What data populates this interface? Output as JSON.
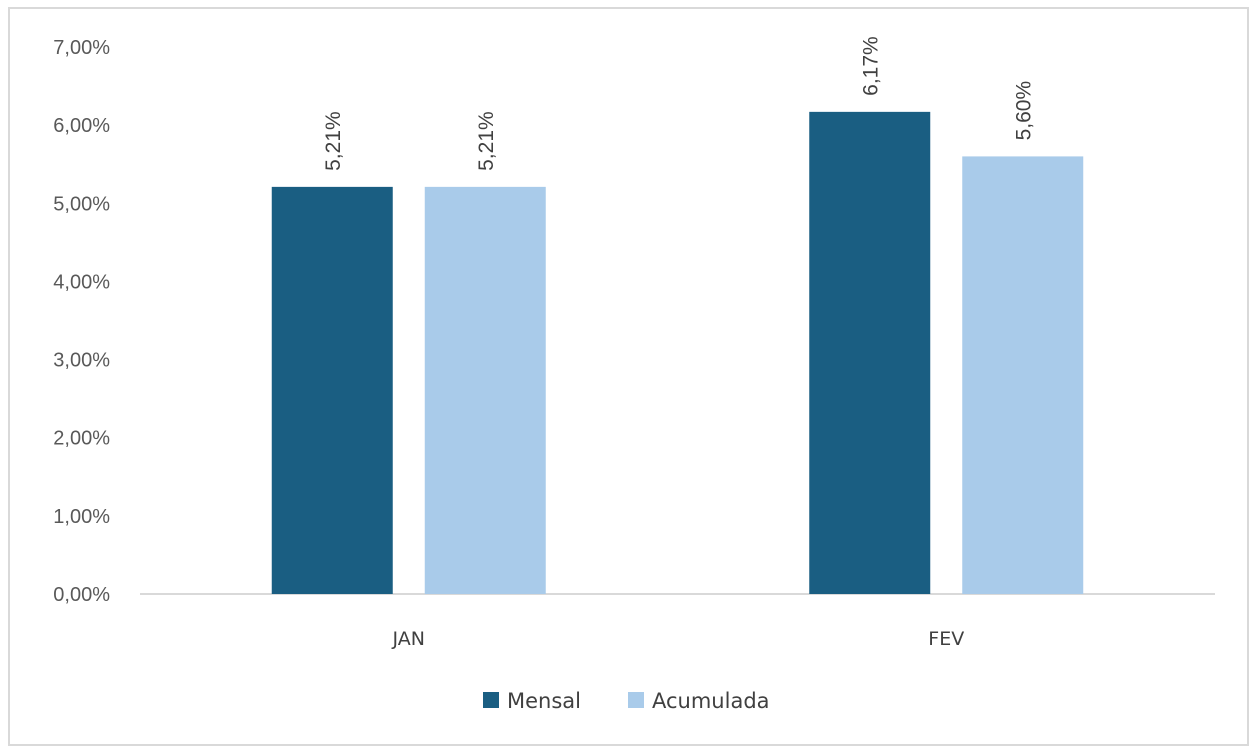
{
  "chart_data": {
    "type": "bar",
    "title": "",
    "xlabel": "",
    "ylabel": "",
    "categories": [
      "JAN",
      "FEV"
    ],
    "series": [
      {
        "name": "Mensal",
        "values": [
          5.21,
          6.17
        ],
        "color": "#1a5e82",
        "labels": [
          "5,21%",
          "6,17%"
        ]
      },
      {
        "name": "Acumulada",
        "values": [
          5.21,
          5.6
        ],
        "color": "#a9cbea",
        "labels": [
          "5,21%",
          "5,60%"
        ]
      }
    ],
    "ylim": [
      0,
      7
    ],
    "yticks": [
      0,
      1,
      2,
      3,
      4,
      5,
      6,
      7
    ],
    "ytick_labels": [
      "0,00%",
      "1,00%",
      "2,00%",
      "3,00%",
      "4,00%",
      "5,00%",
      "6,00%",
      "7,00%"
    ],
    "grid": false,
    "legend_position": "bottom",
    "axis_color": "#d9d9d9"
  }
}
